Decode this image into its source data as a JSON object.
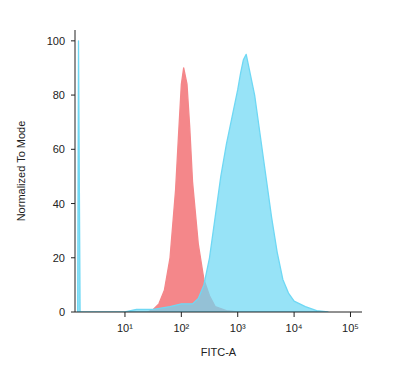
{
  "chart_data": {
    "type": "area",
    "log": "x",
    "xlabel": "FITC-A",
    "ylabel": "Normalized To Mode",
    "xlim": [
      1.3,
      160000
    ],
    "ylim": [
      0,
      104
    ],
    "xticks": [
      {
        "value": 10,
        "label": "10¹"
      },
      {
        "value": 100,
        "label": "10²"
      },
      {
        "value": 1000,
        "label": "10³"
      },
      {
        "value": 10000,
        "label": "10⁴"
      },
      {
        "value": 100000,
        "label": "10⁵"
      }
    ],
    "yticks": [
      0,
      20,
      40,
      60,
      80,
      100
    ],
    "grid": false,
    "series": [
      {
        "color": "#f4878a",
        "x": [
          25,
          32,
          40,
          50,
          63,
          79,
          89,
          100,
          110,
          126,
          141,
          158,
          200,
          251,
          316,
          398,
          631,
          1000
        ],
        "values": [
          0,
          1,
          3,
          8,
          20,
          45,
          65,
          84,
          90,
          84,
          68,
          48,
          25,
          12,
          6,
          2,
          0.5,
          0
        ]
      },
      {
        "color": "#6fd8f4",
        "x": [
          1.45,
          1.5,
          1.6,
          10,
          16,
          32,
          63,
          100,
          158,
          200,
          251,
          316,
          398,
          501,
          631,
          794,
          1000,
          1122,
          1259,
          1413,
          1585,
          1995,
          2512,
          3162,
          3981,
          5012,
          6310,
          7943,
          10000,
          15849,
          25119,
          39811
        ],
        "values": [
          0,
          100,
          0,
          0,
          1,
          1,
          2,
          3,
          3,
          5,
          10,
          20,
          35,
          50,
          62,
          72,
          82,
          88,
          93,
          95,
          90,
          80,
          65,
          50,
          35,
          22,
          12,
          7,
          4,
          2,
          0.5,
          0
        ]
      }
    ]
  }
}
